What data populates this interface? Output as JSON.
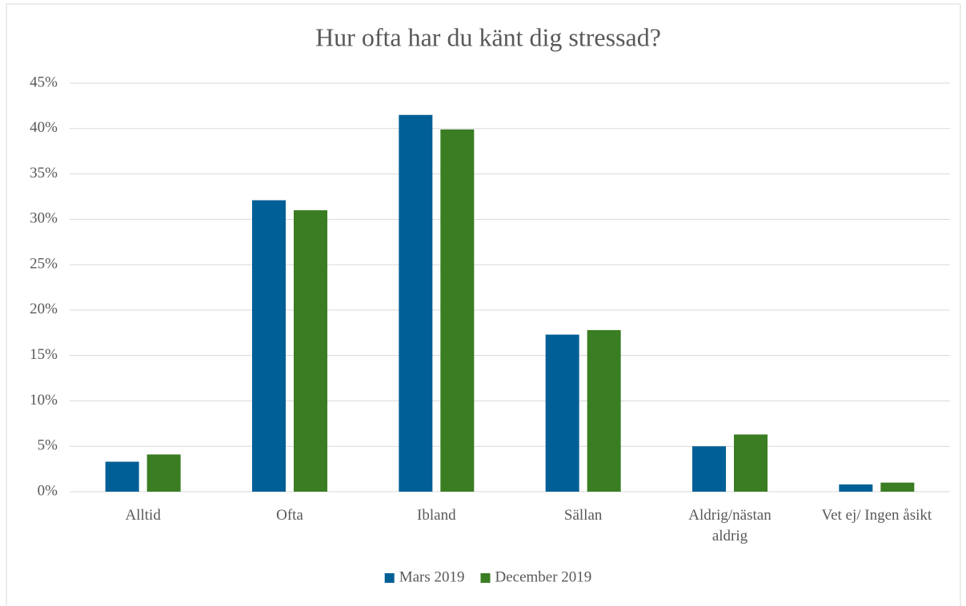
{
  "chart_data": {
    "type": "bar",
    "title": "Hur ofta har du känt dig stressad?",
    "categories": [
      "Alltid",
      "Ofta",
      "Ibland",
      "Sällan",
      "Aldrig/nästan aldrig",
      "Vet ej/ Ingen åsikt"
    ],
    "series": [
      {
        "name": "Mars 2019",
        "color": "#005f96",
        "values": [
          3.3,
          32.1,
          41.5,
          17.3,
          5.0,
          0.8
        ]
      },
      {
        "name": "December 2019",
        "color": "#3a7d22",
        "values": [
          4.1,
          31.0,
          39.9,
          17.8,
          6.3,
          1.0
        ]
      }
    ],
    "ylim": [
      0,
      45
    ],
    "yticks": [
      {
        "value": 0,
        "label": "0%"
      },
      {
        "value": 5,
        "label": "5%"
      },
      {
        "value": 10,
        "label": "10%"
      },
      {
        "value": 15,
        "label": "15%"
      },
      {
        "value": 20,
        "label": "20%"
      },
      {
        "value": 25,
        "label": "25%"
      },
      {
        "value": 30,
        "label": "30%"
      },
      {
        "value": 35,
        "label": "35%"
      },
      {
        "value": 40,
        "label": "40%"
      },
      {
        "value": 45,
        "label": "45%"
      }
    ],
    "grid": true,
    "legend": "bottom"
  }
}
